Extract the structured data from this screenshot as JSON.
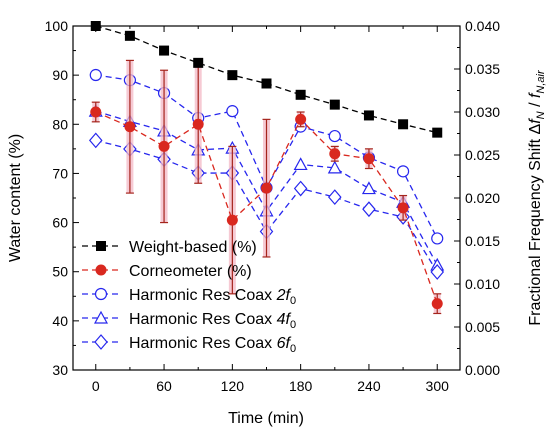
{
  "chart_data": {
    "type": "line",
    "x": [
      0,
      30,
      60,
      90,
      120,
      150,
      180,
      210,
      240,
      270,
      300
    ],
    "xlabel": "Time (min)",
    "ylabel": "Water content (%)",
    "y2label": "Fractional Frequency Shift Δf_N / f_N,air",
    "xlim": [
      -20,
      320
    ],
    "ylim": [
      30,
      100
    ],
    "y2lim": [
      0.0,
      0.04
    ],
    "xticks": [
      "0",
      "60",
      "120",
      "180",
      "240",
      "300"
    ],
    "yticks": [
      "30",
      "40",
      "50",
      "60",
      "70",
      "80",
      "90",
      "100"
    ],
    "y2ticks": [
      "0.000",
      "0.005",
      "0.010",
      "0.015",
      "0.020",
      "0.025",
      "0.030",
      "0.035",
      "0.040"
    ],
    "legend_position": "lower-left",
    "series": [
      {
        "name": "Weight-based (%)",
        "axis": "left",
        "marker": "square",
        "color": "#000000",
        "values": [
          100,
          98,
          95,
          92.5,
          90,
          88.3,
          86,
          84,
          81.8,
          80,
          78.3
        ]
      },
      {
        "name": "Corneometer (%)",
        "axis": "left",
        "marker": "circle-filled",
        "color": "#d9281f",
        "values": [
          82.5,
          79.5,
          75.5,
          80,
          60.5,
          67,
          81,
          74,
          73,
          63,
          43.5
        ],
        "errors": [
          2,
          13.5,
          15.5,
          12,
          15,
          14,
          1.5,
          1.5,
          2,
          2.5,
          2
        ]
      },
      {
        "name": "Harmonic Res Coax 2f0",
        "axis": "right",
        "marker": "circle-open",
        "color": "#2727ee",
        "values": [
          0.0343,
          0.0337,
          0.0322,
          0.0293,
          0.0301,
          0.0212,
          0.0283,
          0.0272,
          0.0247,
          0.0231,
          0.0153
        ]
      },
      {
        "name": "Harmonic Res Coax 4f0",
        "axis": "right",
        "marker": "triangle-open",
        "color": "#2727ee",
        "values": [
          0.0301,
          0.0289,
          0.0278,
          0.0256,
          0.0258,
          0.0185,
          0.0239,
          0.0235,
          0.0211,
          0.0195,
          0.0122
        ]
      },
      {
        "name": "Harmonic Res Coax 6f0",
        "axis": "right",
        "marker": "diamond-open",
        "color": "#2727ee",
        "values": [
          0.0267,
          0.0257,
          0.0245,
          0.0229,
          0.0229,
          0.0161,
          0.0211,
          0.0201,
          0.0187,
          0.0178,
          0.0114
        ]
      }
    ],
    "legend": {
      "weight": "Weight-based (%)",
      "corneo": "Corneometer (%)",
      "h2_prefix": "Harmonic Res Coax ",
      "h2_suffix": "2",
      "h4_prefix": "Harmonic Res Coax ",
      "h4_suffix": "4",
      "h6_prefix": "Harmonic Res Coax ",
      "h6_suffix": "6",
      "f_symbol": "f",
      "f_sub": "0"
    },
    "y2label_parts": {
      "main": "Fractional Frequency Shift ",
      "delta": "Δ",
      "f1": "f",
      "sub1": "N",
      "slash": " / ",
      "f2": "f",
      "sub2": "N,air"
    }
  }
}
